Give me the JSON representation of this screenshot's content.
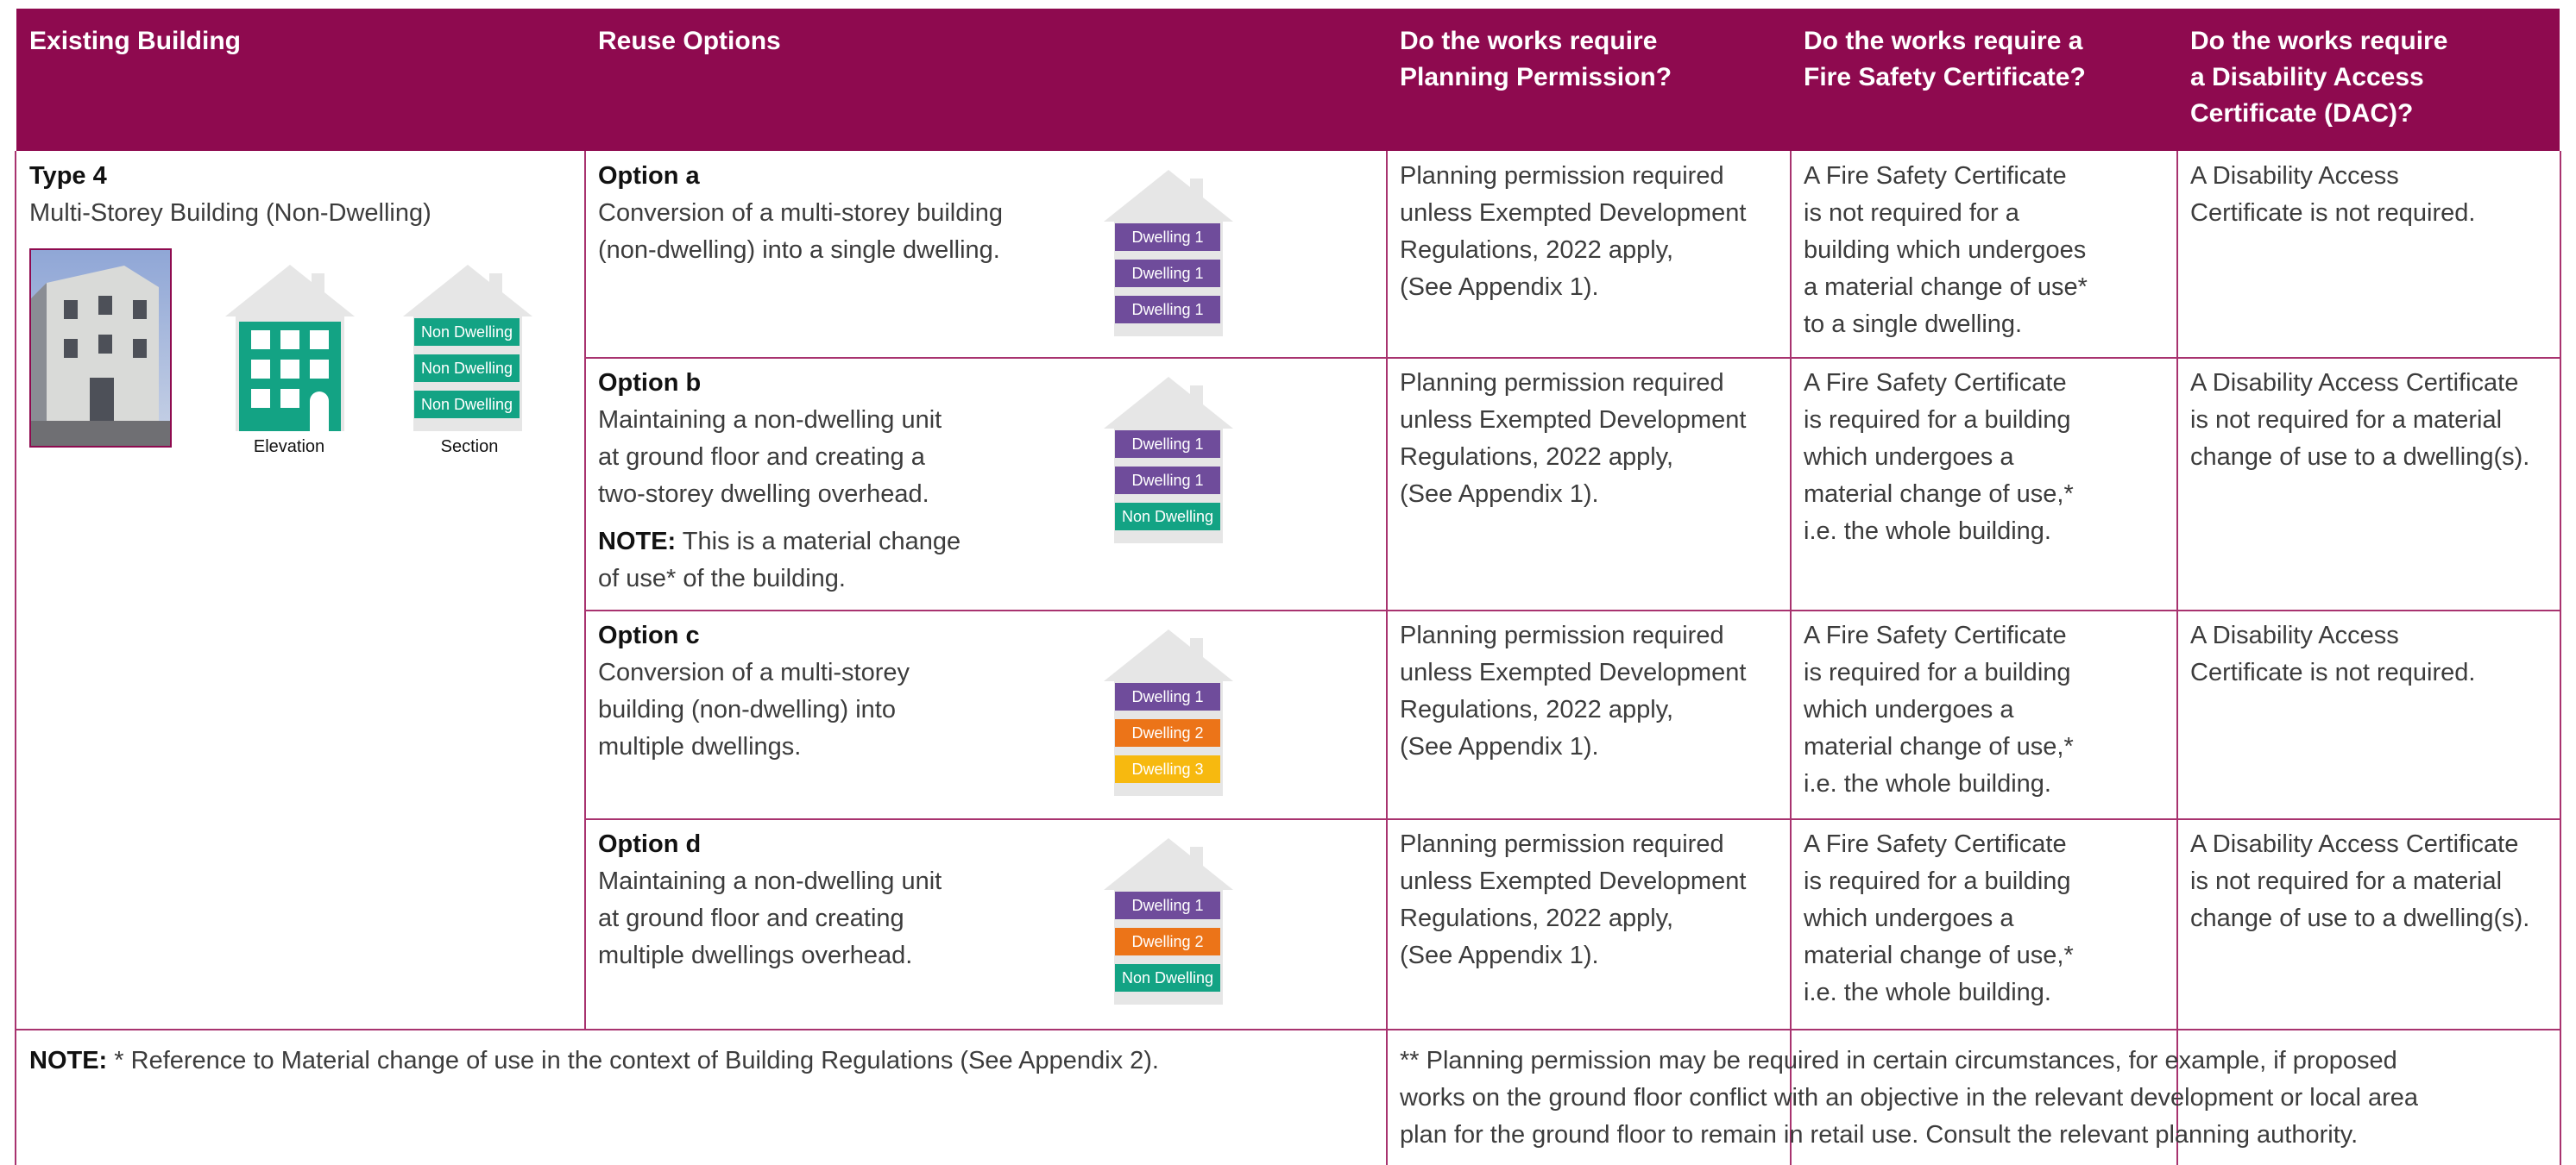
{
  "header": {
    "columns": [
      [
        "Existing Building"
      ],
      [
        "Reuse Options"
      ],
      [
        "Do the works require",
        "Planning Permission?"
      ],
      [
        "Do the works require a",
        "Fire Safety Certificate?"
      ],
      [
        "Do the works require",
        "a Disability Access",
        "Certificate (DAC)?"
      ]
    ]
  },
  "existing": {
    "type": "Type 4",
    "subtitle": "Multi-Storey Building (Non-Dwelling)",
    "elevation_label": "Elevation",
    "section_label": "Section",
    "section_units": [
      {
        "label": "Non Dwelling",
        "color": "#13a384"
      },
      {
        "label": "Non Dwelling",
        "color": "#13a384"
      },
      {
        "label": "Non Dwelling",
        "color": "#13a384"
      }
    ]
  },
  "options": [
    {
      "title": "Option a",
      "description": [
        "Conversion of a multi-storey building",
        "(non-dwelling) into a single dwelling."
      ],
      "units": [
        {
          "label": "Dwelling 1",
          "color": "#6f4c9b"
        },
        {
          "label": "Dwelling 1",
          "color": "#6f4c9b"
        },
        {
          "label": "Dwelling 1",
          "color": "#6f4c9b"
        }
      ],
      "planning": [
        "Planning permission required",
        "unless Exempted Development",
        "Regulations, 2022 apply,",
        "(See Appendix 1)."
      ],
      "fire": [
        "A Fire Safety Certificate",
        "is not required for a",
        "building which undergoes",
        "a material change of use*",
        "to a single dwelling."
      ],
      "dac": [
        "A Disability Access",
        "Certificate is not required."
      ]
    },
    {
      "title": "Option b",
      "description": [
        "Maintaining a non-dwelling unit",
        "at ground floor and creating a",
        "two-storey dwelling overhead."
      ],
      "note": {
        "label": "NOTE:",
        "lines": [
          "This is a material change",
          "of use* of the building."
        ]
      },
      "units": [
        {
          "label": "Dwelling 1",
          "color": "#6f4c9b"
        },
        {
          "label": "Dwelling 1",
          "color": "#6f4c9b"
        },
        {
          "label": "Non Dwelling",
          "color": "#13a384"
        }
      ],
      "planning": [
        "Planning permission required",
        "unless Exempted Development",
        "Regulations, 2022 apply,",
        "(See Appendix 1)."
      ],
      "fire": [
        "A Fire Safety Certificate",
        "is required for a building",
        "which undergoes a",
        "material change of use,*",
        "i.e. the whole building."
      ],
      "dac": [
        "A Disability Access Certificate",
        "is not required for a material",
        "change of use to a dwelling(s)."
      ]
    },
    {
      "title": "Option c",
      "description": [
        "Conversion of a multi-storey",
        "building (non-dwelling) into",
        "multiple dwellings."
      ],
      "units": [
        {
          "label": "Dwelling 1",
          "color": "#6f4c9b"
        },
        {
          "label": "Dwelling 2",
          "color": "#ec7418"
        },
        {
          "label": "Dwelling 3",
          "color": "#f7b90f"
        }
      ],
      "planning": [
        "Planning permission required",
        "unless Exempted Development",
        "Regulations, 2022 apply,",
        "(See Appendix 1)."
      ],
      "fire": [
        "A Fire Safety Certificate",
        "is required for a building",
        "which undergoes a",
        "material change of use,*",
        "i.e. the whole building."
      ],
      "dac": [
        "A Disability Access",
        "Certificate is not required."
      ]
    },
    {
      "title": "Option d",
      "description": [
        "Maintaining a non-dwelling unit",
        "at ground floor and creating",
        "multiple dwellings overhead."
      ],
      "units": [
        {
          "label": "Dwelling 1",
          "color": "#6f4c9b"
        },
        {
          "label": "Dwelling 2",
          "color": "#ec7418"
        },
        {
          "label": "Non Dwelling",
          "color": "#13a384"
        }
      ],
      "planning": [
        "Planning permission required",
        "unless Exempted Development",
        "Regulations, 2022 apply,",
        "(See Appendix 1)."
      ],
      "fire": [
        "A Fire Safety Certificate",
        "is required for a building",
        "which undergoes a",
        "material change of use,*",
        "i.e. the whole building."
      ],
      "dac": [
        "A Disability Access Certificate",
        "is not required for a material",
        "change of use to a dwelling(s)."
      ]
    }
  ],
  "footer": {
    "note_label": "NOTE:",
    "note": "* Reference to Material change of use in the context of Building Regulations (See Appendix 2).",
    "planning_note": [
      "** Planning permission may be required in certain circumstances, for example, if proposed",
      "works on the ground floor conflict with an objective in the relevant development or local area",
      "plan for the ground floor to remain in retail use. Consult the relevant planning authority."
    ]
  }
}
